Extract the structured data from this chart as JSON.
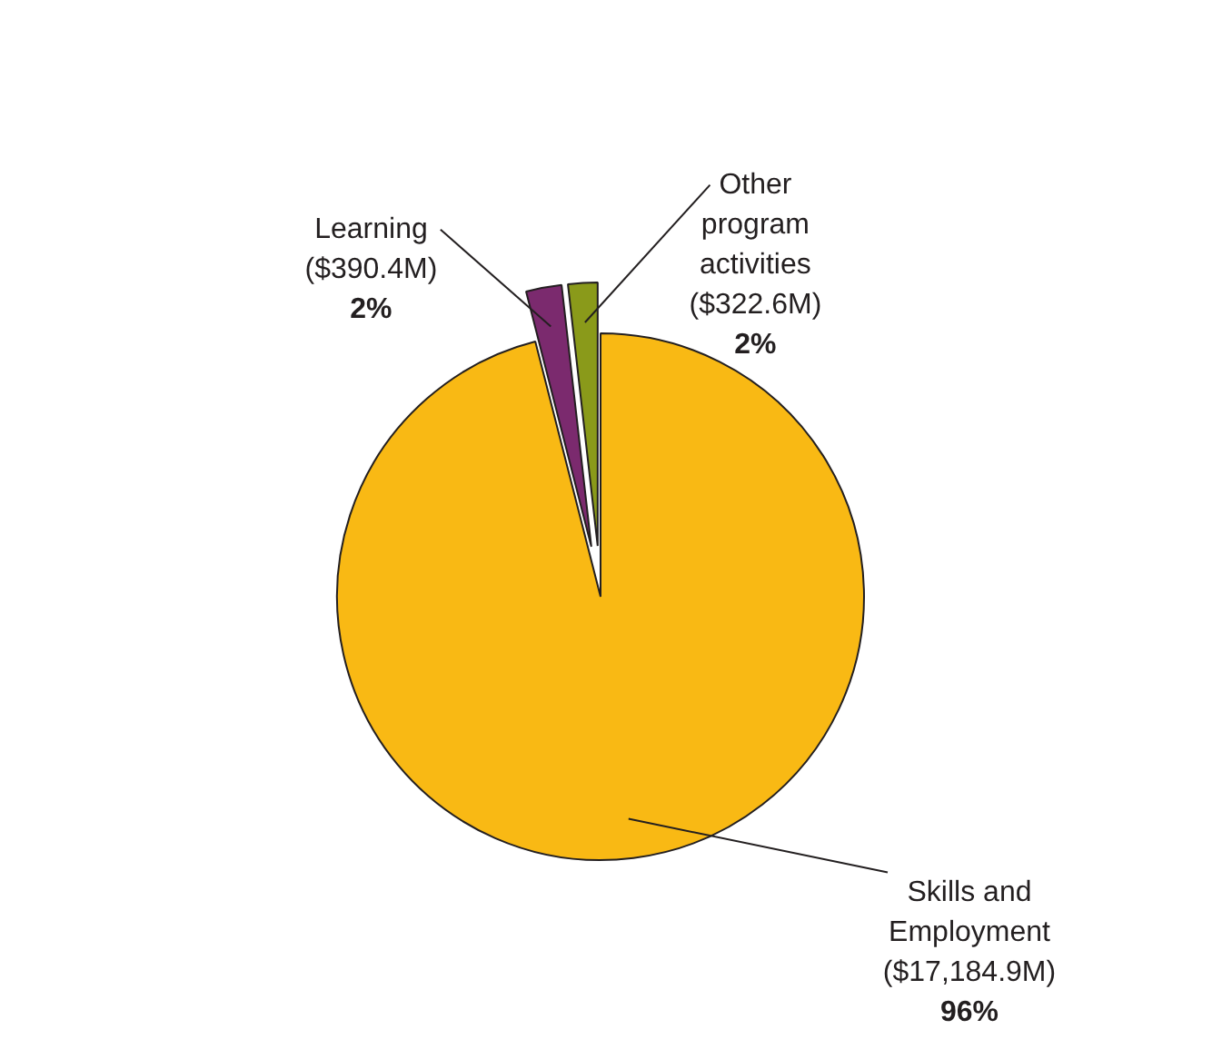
{
  "chart_data": {
    "type": "pie",
    "categories": [
      "Skills and Employment",
      "Learning",
      "Other program activities"
    ],
    "values": [
      17184.9,
      390.4,
      322.6
    ],
    "colors": [
      "#f9b914",
      "#7b2a6e",
      "#8a9a1a"
    ],
    "value_labels": [
      "($17,184.9M)",
      "($390.4M)",
      "($322.6M)"
    ],
    "annotations": [
      "96%",
      "2%",
      "2%"
    ]
  }
}
